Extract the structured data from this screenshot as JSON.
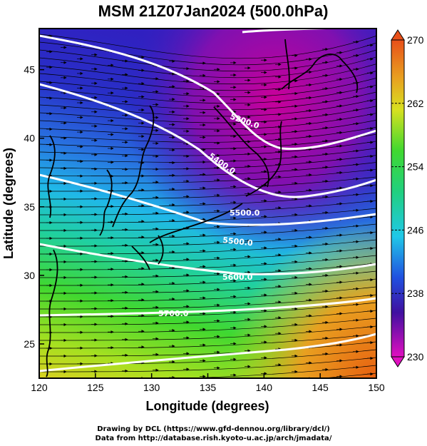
{
  "title": "MSM 21Z07Jan2024 (500.0hPa)",
  "xlabel": "Longitude (degrees)",
  "ylabel": "Latitude  (degrees)",
  "x_ticks": [
    "120",
    "125",
    "130",
    "135",
    "140",
    "145",
    "150"
  ],
  "y_ticks": [
    "25",
    "30",
    "35",
    "40",
    "45"
  ],
  "colorbar_ticks": [
    "270",
    "262",
    "254",
    "246",
    "238",
    "230"
  ],
  "credits": {
    "line1": "Drawing by DCL (https://www.gfd-dennou.org/library/dcl/)",
    "line2": "Data from http://database.rish.kyoto-u.ac.jp/arch/jmadata/"
  },
  "chart_data": {
    "type": "map",
    "xlim": [
      120,
      150
    ],
    "ylim": [
      22.5,
      48
    ],
    "colorbar_range": [
      230,
      270
    ],
    "colors": {
      "low": "#c8009a",
      "blue": "#2a2ac8",
      "cyan": "#20c8e8",
      "green": "#30d830",
      "yellow": "#d8e020",
      "high": "#e85a10"
    },
    "contour_labels": [
      {
        "text": "5200.0"
      },
      {
        "text": "5400.0"
      },
      {
        "text": "5500.0"
      },
      {
        "text": "5500.0"
      },
      {
        "text": "5600.0"
      },
      {
        "text": "5700.0"
      }
    ]
  }
}
